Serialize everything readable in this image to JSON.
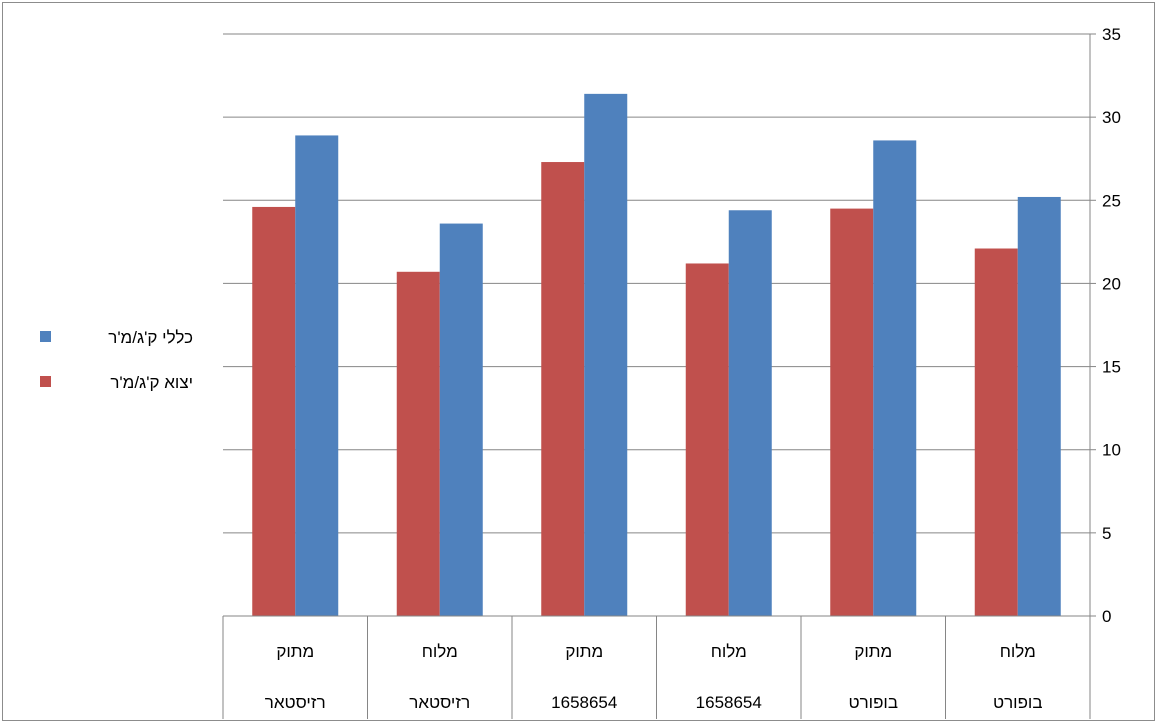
{
  "chart_data": {
    "type": "bar",
    "orientation": "vertical",
    "categories": [
      [
        "מתוק",
        "רזיסטאר"
      ],
      [
        "מלוח",
        "רזיסטאר"
      ],
      [
        "מתוק",
        "1658654"
      ],
      [
        "מלוח",
        "1658654"
      ],
      [
        "מתוק",
        "בופורט"
      ],
      [
        "מלוח",
        "בופורט"
      ]
    ],
    "series": [
      {
        "name": "יצוא ק'ג/מ'ר",
        "color": "#C0504D",
        "values": [
          24.6,
          20.7,
          27.3,
          21.2,
          24.5,
          22.1
        ]
      },
      {
        "name": "כללי ק'ג/מ'ר",
        "color": "#4F81BD",
        "values": [
          28.9,
          23.6,
          31.4,
          24.4,
          28.6,
          25.2
        ]
      }
    ],
    "ylim": [
      0,
      35
    ],
    "yticks": [
      0,
      5,
      10,
      15,
      20,
      25,
      30,
      35
    ],
    "grid": true,
    "y_axis_side": "right",
    "legend_position": "left",
    "legend_order": [
      1,
      0
    ],
    "colors": {
      "gridline": "#868686",
      "axis": "#868686"
    }
  }
}
